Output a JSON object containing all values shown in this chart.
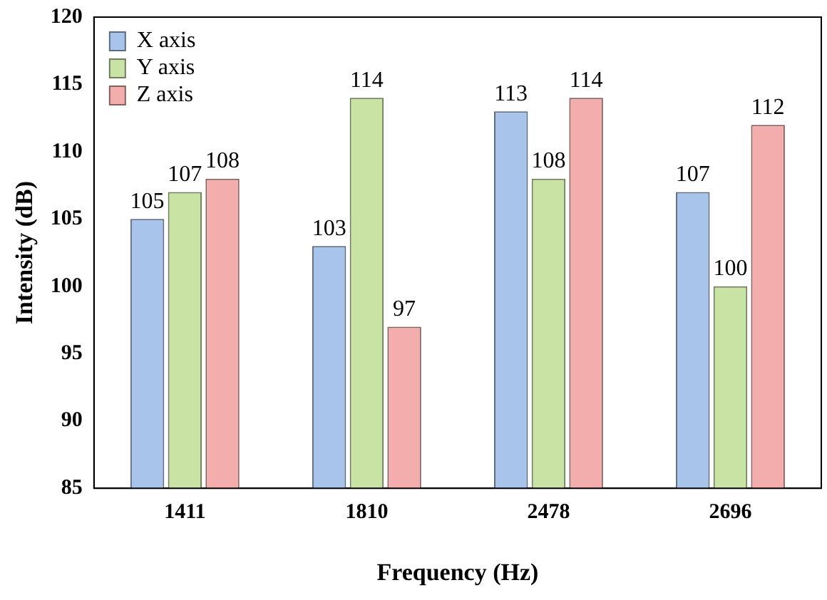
{
  "chart_data": {
    "type": "bar",
    "xlabel": "Frequency (Hz)",
    "ylabel": "Intensity (dB)",
    "categories": [
      "1411",
      "1810",
      "2478",
      "2696"
    ],
    "series": [
      {
        "name": "X axis",
        "color": "#a9c4ea",
        "values": [
          105,
          103,
          113,
          107
        ]
      },
      {
        "name": "Y axis",
        "color": "#c9e3a4",
        "values": [
          107,
          114,
          108,
          100
        ]
      },
      {
        "name": "Z axis",
        "color": "#f4adad",
        "values": [
          108,
          97,
          114,
          112
        ]
      }
    ],
    "ylim": [
      85,
      120
    ],
    "yticks": [
      85,
      90,
      95,
      100,
      105,
      110,
      115,
      120
    ],
    "grid": false,
    "legend": "top left",
    "data_labels": true
  }
}
